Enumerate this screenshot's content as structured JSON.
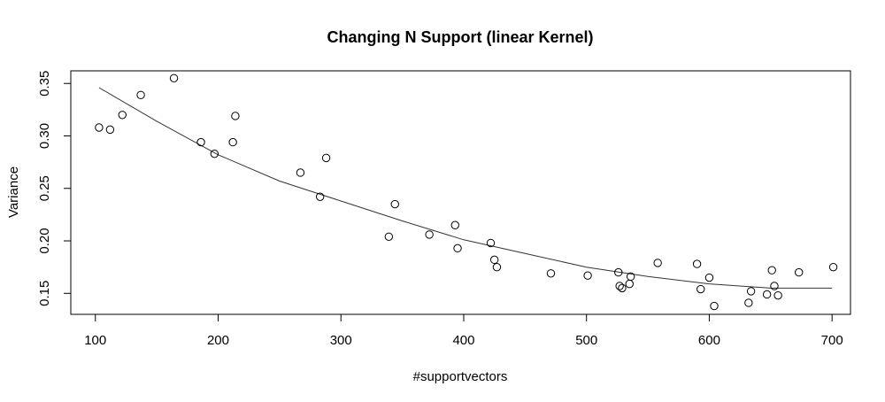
{
  "chart_data": {
    "type": "scatter",
    "title": "Changing N Support (linear Kernel)",
    "xlabel": "#supportvectors",
    "ylabel": "Variance",
    "xlim": [
      80,
      715
    ],
    "ylim": [
      0.13,
      0.362
    ],
    "xticks": [
      "100",
      "200",
      "300",
      "400",
      "500",
      "600",
      "700"
    ],
    "yticks": [
      "0.15",
      "0.20",
      "0.25",
      "0.30",
      "0.35"
    ],
    "grid": false,
    "legend": "none",
    "points": [
      {
        "x": 103,
        "y": 0.308
      },
      {
        "x": 112,
        "y": 0.306
      },
      {
        "x": 122,
        "y": 0.32
      },
      {
        "x": 137,
        "y": 0.339
      },
      {
        "x": 164,
        "y": 0.355
      },
      {
        "x": 186,
        "y": 0.294
      },
      {
        "x": 197,
        "y": 0.283
      },
      {
        "x": 212,
        "y": 0.294
      },
      {
        "x": 214,
        "y": 0.319
      },
      {
        "x": 267,
        "y": 0.265
      },
      {
        "x": 283,
        "y": 0.242
      },
      {
        "x": 288,
        "y": 0.279
      },
      {
        "x": 339,
        "y": 0.204
      },
      {
        "x": 344,
        "y": 0.235
      },
      {
        "x": 372,
        "y": 0.206
      },
      {
        "x": 393,
        "y": 0.215
      },
      {
        "x": 395,
        "y": 0.193
      },
      {
        "x": 422,
        "y": 0.198
      },
      {
        "x": 425,
        "y": 0.182
      },
      {
        "x": 427,
        "y": 0.175
      },
      {
        "x": 471,
        "y": 0.169
      },
      {
        "x": 501,
        "y": 0.167
      },
      {
        "x": 526,
        "y": 0.17
      },
      {
        "x": 527,
        "y": 0.157
      },
      {
        "x": 529,
        "y": 0.155
      },
      {
        "x": 535,
        "y": 0.159
      },
      {
        "x": 536,
        "y": 0.166
      },
      {
        "x": 558,
        "y": 0.179
      },
      {
        "x": 590,
        "y": 0.178
      },
      {
        "x": 593,
        "y": 0.154
      },
      {
        "x": 600,
        "y": 0.165
      },
      {
        "x": 604,
        "y": 0.138
      },
      {
        "x": 632,
        "y": 0.141
      },
      {
        "x": 634,
        "y": 0.152
      },
      {
        "x": 647,
        "y": 0.149
      },
      {
        "x": 651,
        "y": 0.172
      },
      {
        "x": 653,
        "y": 0.157
      },
      {
        "x": 656,
        "y": 0.148
      },
      {
        "x": 673,
        "y": 0.17
      },
      {
        "x": 701,
        "y": 0.175
      }
    ],
    "fit_line": [
      {
        "x": 103,
        "y": 0.346
      },
      {
        "x": 150,
        "y": 0.314
      },
      {
        "x": 200,
        "y": 0.282
      },
      {
        "x": 250,
        "y": 0.257
      },
      {
        "x": 300,
        "y": 0.238
      },
      {
        "x": 350,
        "y": 0.219
      },
      {
        "x": 400,
        "y": 0.201
      },
      {
        "x": 450,
        "y": 0.188
      },
      {
        "x": 500,
        "y": 0.175
      },
      {
        "x": 550,
        "y": 0.166
      },
      {
        "x": 600,
        "y": 0.159
      },
      {
        "x": 650,
        "y": 0.155
      },
      {
        "x": 700,
        "y": 0.155
      }
    ]
  }
}
